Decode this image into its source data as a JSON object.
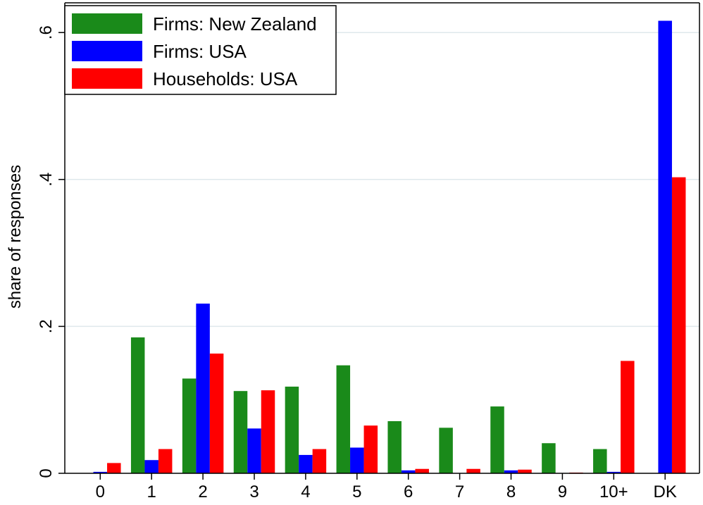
{
  "chart_data": {
    "type": "bar",
    "ylabel": "share of responses",
    "xlabel": "",
    "categories": [
      "0",
      "1",
      "2",
      "3",
      "4",
      "5",
      "6",
      "7",
      "8",
      "9",
      "10+",
      "DK"
    ],
    "ylim": [
      0,
      0.64
    ],
    "yticks": [
      {
        "value": 0,
        "label": "0"
      },
      {
        "value": 0.2,
        "label": ".2"
      },
      {
        "value": 0.4,
        "label": ".4"
      },
      {
        "value": 0.6,
        "label": ".6"
      }
    ],
    "grid": true,
    "legend_position": "top-left",
    "series": [
      {
        "name": "Firms: New Zealand",
        "color": "#1a8a1a",
        "values": [
          0,
          0.185,
          0.129,
          0.112,
          0.118,
          0.147,
          0.071,
          0.062,
          0.091,
          0.041,
          0.033,
          0
        ]
      },
      {
        "name": "Firms: USA",
        "color": "#0000ff",
        "values": [
          0.002,
          0.018,
          0.231,
          0.061,
          0.025,
          0.035,
          0.004,
          0,
          0.004,
          0,
          0.002,
          0.616
        ]
      },
      {
        "name": "Households: USA",
        "color": "#ff0000",
        "values": [
          0.014,
          0.033,
          0.163,
          0.113,
          0.033,
          0.065,
          0.006,
          0.006,
          0.005,
          0.001,
          0.153,
          0.403
        ]
      }
    ]
  }
}
